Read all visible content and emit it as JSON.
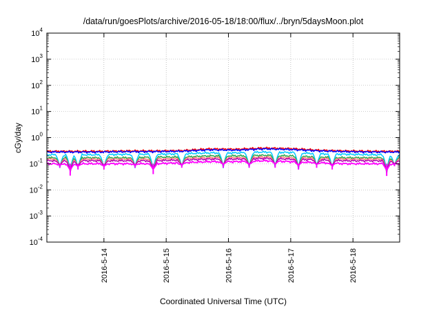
{
  "chart_data": {
    "type": "line",
    "title": "/data/run/goesPlots/archive/2016-05-18/18:00/flux/../bryn/5daysMoon.plot",
    "xlabel": "Coordinated Universal Time (UTC)",
    "ylabel": "cGy/day",
    "scale": {
      "y": "log"
    },
    "xlim": [
      "2016-05-13 02:00",
      "2016-05-18 18:00"
    ],
    "ylim": [
      0.0001,
      10000
    ],
    "grid": "dotted",
    "x_ticks": [
      "2016-5-14",
      "2016-5-15",
      "2016-5-16",
      "2016-5-17",
      "2016-5-18"
    ],
    "y_ticks": [
      {
        "base": "10",
        "exp": "-4",
        "value": 0.0001
      },
      {
        "base": "10",
        "exp": "-3",
        "value": 0.001
      },
      {
        "base": "10",
        "exp": "-2",
        "value": 0.01
      },
      {
        "base": "10",
        "exp": "-1",
        "value": 0.1
      },
      {
        "base": "10",
        "exp": "0",
        "value": 1
      },
      {
        "base": "10",
        "exp": "1",
        "value": 10
      },
      {
        "base": "10",
        "exp": "2",
        "value": 100
      },
      {
        "base": "10",
        "exp": "3",
        "value": 1000
      },
      {
        "base": "10",
        "exp": "4",
        "value": 10000
      }
    ],
    "series": [
      {
        "color": "#ff0000",
        "base": [
          0.3,
          0.3,
          0.3,
          0.31,
          0.31,
          0.32,
          0.37,
          0.36,
          0.4,
          0.38,
          0.33,
          0.31,
          0.3,
          0.3
        ]
      },
      {
        "color": "#0000ff",
        "base": [
          0.28,
          0.28,
          0.28,
          0.29,
          0.29,
          0.3,
          0.34,
          0.33,
          0.37,
          0.35,
          0.31,
          0.29,
          0.28,
          0.28
        ]
      },
      {
        "color": "#00c8ff",
        "base": [
          0.22,
          0.22,
          0.22,
          0.23,
          0.23,
          0.24,
          0.26,
          0.26,
          0.28,
          0.27,
          0.24,
          0.23,
          0.22,
          0.22
        ]
      },
      {
        "color": "#2aa84a",
        "base": [
          0.17,
          0.17,
          0.17,
          0.17,
          0.18,
          0.18,
          0.2,
          0.2,
          0.21,
          0.2,
          0.18,
          0.17,
          0.17,
          0.17
        ]
      },
      {
        "color": "#ff7f7f",
        "base": [
          0.15,
          0.15,
          0.15,
          0.15,
          0.15,
          0.16,
          0.17,
          0.17,
          0.18,
          0.17,
          0.16,
          0.15,
          0.15,
          0.15
        ]
      },
      {
        "color": "#b000b0",
        "base": [
          0.13,
          0.13,
          0.13,
          0.13,
          0.13,
          0.14,
          0.15,
          0.15,
          0.16,
          0.15,
          0.14,
          0.13,
          0.13,
          0.13
        ]
      },
      {
        "color": "#ff00ff",
        "base": [
          0.1,
          0.1,
          0.1,
          0.1,
          0.1,
          0.11,
          0.12,
          0.12,
          0.13,
          0.12,
          0.11,
          0.1,
          0.1,
          0.1
        ]
      }
    ],
    "dips": [
      {
        "x": "2016-05-13 07:00",
        "value": 0.07
      },
      {
        "x": "2016-05-13 11:00",
        "value": 0.035
      },
      {
        "x": "2016-05-13 14:00",
        "value": 0.06
      },
      {
        "x": "2016-05-14 00:00",
        "value": 0.06
      },
      {
        "x": "2016-05-14 12:00",
        "value": 0.07
      },
      {
        "x": "2016-05-14 19:00",
        "value": 0.04
      },
      {
        "x": "2016-05-15 06:00",
        "value": 0.07
      },
      {
        "x": "2016-05-15 22:00",
        "value": 0.07
      },
      {
        "x": "2016-05-16 08:00",
        "value": 0.07
      },
      {
        "x": "2016-05-16 18:00",
        "value": 0.07
      },
      {
        "x": "2016-05-17 03:00",
        "value": 0.06
      },
      {
        "x": "2016-05-17 10:00",
        "value": 0.07
      },
      {
        "x": "2016-05-17 16:00",
        "value": 0.06
      },
      {
        "x": "2016-05-18 13:00",
        "value": 0.034
      },
      {
        "x": "2016-05-18 16:00",
        "value": 0.08
      }
    ]
  }
}
